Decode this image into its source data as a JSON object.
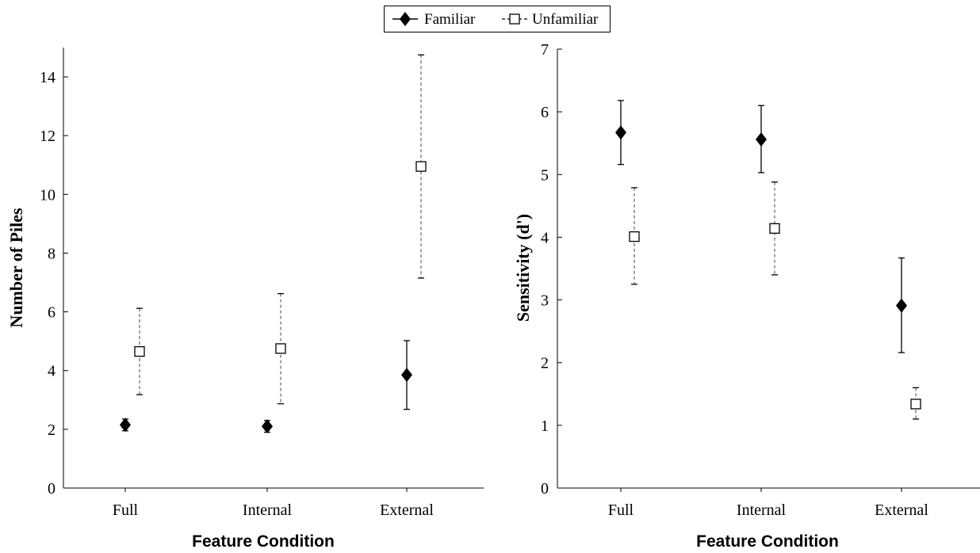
{
  "legend": {
    "familiar_label": "Familiar",
    "unfamiliar_label": "Unfamiliar"
  },
  "chart_data": [
    {
      "type": "scatter",
      "title": "",
      "xlabel": "Feature Condition",
      "ylabel": "Number of Piles",
      "categories": [
        "Full",
        "Internal",
        "External"
      ],
      "ylim": [
        0,
        15
      ],
      "yticks": [
        0,
        2,
        4,
        6,
        8,
        10,
        12,
        14
      ],
      "series": [
        {
          "name": "Familiar",
          "marker": "filled-diamond",
          "line_style": "solid",
          "values": [
            2.15,
            2.1,
            3.85
          ],
          "error_low": [
            1.95,
            1.9,
            2.68
          ],
          "error_high": [
            2.35,
            2.3,
            5.02
          ]
        },
        {
          "name": "Unfamiliar",
          "marker": "open-square",
          "line_style": "dashed",
          "values": [
            4.65,
            4.75,
            10.95
          ],
          "error_low": [
            3.18,
            2.87,
            7.15
          ],
          "error_high": [
            6.12,
            6.62,
            14.75
          ]
        }
      ]
    },
    {
      "type": "scatter",
      "title": "",
      "xlabel": "Feature Condition",
      "ylabel": "Sensitivity (d')",
      "categories": [
        "Full",
        "Internal",
        "External"
      ],
      "ylim": [
        0,
        7
      ],
      "yticks": [
        0,
        1,
        2,
        3,
        4,
        5,
        6,
        7
      ],
      "series": [
        {
          "name": "Familiar",
          "marker": "filled-diamond",
          "line_style": "solid",
          "values": [
            5.67,
            5.56,
            2.91
          ],
          "error_low": [
            5.16,
            5.03,
            2.16
          ],
          "error_high": [
            6.18,
            6.1,
            3.67
          ]
        },
        {
          "name": "Unfamiliar",
          "marker": "open-square",
          "line_style": "dashed",
          "values": [
            4.01,
            4.14,
            1.34
          ],
          "error_low": [
            3.25,
            3.4,
            1.1
          ],
          "error_high": [
            4.79,
            4.88,
            1.6
          ]
        }
      ]
    }
  ]
}
